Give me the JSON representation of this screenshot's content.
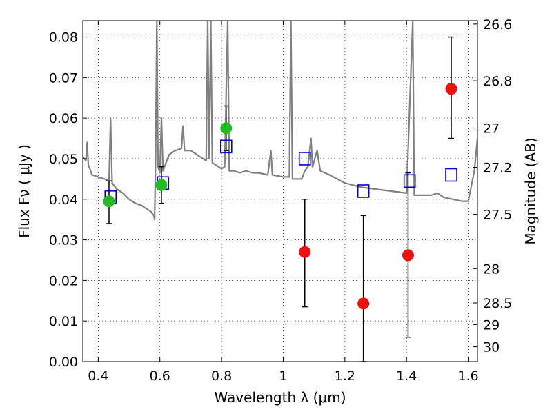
{
  "chart_data": {
    "type": "scatter",
    "xlabel": "Wavelength  λ (μm)",
    "ylabel": "Flux  Fν  ( μJy )",
    "ylabel_right": "Magnitude (AB)",
    "xlim": [
      0.35,
      1.63
    ],
    "ylim": [
      0,
      0.084
    ],
    "grid": true,
    "x_ticks": [
      0.4,
      0.6,
      0.8,
      1.0,
      1.2,
      1.4,
      1.6
    ],
    "x_tick_labels": [
      "0.4",
      "0.6",
      "0.8",
      "1",
      "1.2",
      "1.4",
      "1.6"
    ],
    "y_ticks": [
      0,
      0.01,
      0.02,
      0.03,
      0.04,
      0.05,
      0.06,
      0.07,
      0.08
    ],
    "y_tick_labels": [
      "0.00",
      "0.01",
      "0.02",
      "0.03",
      "0.04",
      "0.05",
      "0.06",
      "0.07",
      "0.08"
    ],
    "right_ticks": [
      {
        "label": "26.6",
        "mag": 26.6
      },
      {
        "label": "26.8",
        "mag": 26.8
      },
      {
        "label": "27",
        "mag": 27.0
      },
      {
        "label": "27.2",
        "mag": 27.2
      },
      {
        "label": "27.5",
        "mag": 27.5
      },
      {
        "label": "28",
        "mag": 28.0
      },
      {
        "label": "28.5",
        "mag": 28.5
      },
      {
        "label": "29",
        "mag": 29.0
      },
      {
        "label": "30",
        "mag": 30.0
      }
    ],
    "series": [
      {
        "kind": "line",
        "color": "#808080",
        "points": [
          [
            0.35,
            0.0505
          ],
          [
            0.36,
            0.0495
          ],
          [
            0.364,
            0.054
          ],
          [
            0.368,
            0.0485
          ],
          [
            0.38,
            0.046
          ],
          [
            0.4,
            0.0455
          ],
          [
            0.42,
            0.045
          ],
          [
            0.435,
            0.0445
          ],
          [
            0.44,
            0.06
          ],
          [
            0.445,
            0.044
          ],
          [
            0.46,
            0.0425
          ],
          [
            0.48,
            0.0415
          ],
          [
            0.5,
            0.04
          ],
          [
            0.52,
            0.039
          ],
          [
            0.54,
            0.0385
          ],
          [
            0.56,
            0.0375
          ],
          [
            0.57,
            0.037
          ],
          [
            0.58,
            0.036
          ],
          [
            0.583,
            0.035
          ],
          [
            0.586,
            0.05
          ],
          [
            0.59,
            0.084
          ],
          [
            0.594,
            0.048
          ],
          [
            0.6,
            0.0465
          ],
          [
            0.605,
            0.06
          ],
          [
            0.61,
            0.047
          ],
          [
            0.62,
            0.049
          ],
          [
            0.63,
            0.051
          ],
          [
            0.65,
            0.052
          ],
          [
            0.67,
            0.0525
          ],
          [
            0.675,
            0.058
          ],
          [
            0.68,
            0.052
          ],
          [
            0.7,
            0.052
          ],
          [
            0.72,
            0.051
          ],
          [
            0.74,
            0.05
          ],
          [
            0.75,
            0.0495
          ],
          [
            0.755,
            0.084
          ],
          [
            0.76,
            0.05
          ],
          [
            0.765,
            0.084
          ],
          [
            0.77,
            0.049
          ],
          [
            0.78,
            0.0485
          ],
          [
            0.79,
            0.048
          ],
          [
            0.8,
            0.0475
          ],
          [
            0.81,
            0.048
          ],
          [
            0.82,
            0.084
          ],
          [
            0.825,
            0.047
          ],
          [
            0.84,
            0.047
          ],
          [
            0.86,
            0.0465
          ],
          [
            0.88,
            0.047
          ],
          [
            0.9,
            0.0465
          ],
          [
            0.92,
            0.0465
          ],
          [
            0.95,
            0.046
          ],
          [
            0.96,
            0.052
          ],
          [
            0.965,
            0.046
          ],
          [
            1.0,
            0.0455
          ],
          [
            1.02,
            0.0455
          ],
          [
            1.025,
            0.084
          ],
          [
            1.03,
            0.045
          ],
          [
            1.06,
            0.045
          ],
          [
            1.07,
            0.047
          ],
          [
            1.08,
            0.048
          ],
          [
            1.09,
            0.055
          ],
          [
            1.095,
            0.048
          ],
          [
            1.11,
            0.052
          ],
          [
            1.12,
            0.047
          ],
          [
            1.15,
            0.046
          ],
          [
            1.2,
            0.044
          ],
          [
            1.25,
            0.043
          ],
          [
            1.3,
            0.0425
          ],
          [
            1.35,
            0.042
          ],
          [
            1.4,
            0.0415
          ],
          [
            1.42,
            0.084
          ],
          [
            1.425,
            0.041
          ],
          [
            1.45,
            0.041
          ],
          [
            1.48,
            0.041
          ],
          [
            1.5,
            0.0415
          ],
          [
            1.52,
            0.0405
          ],
          [
            1.55,
            0.04
          ],
          [
            1.58,
            0.0395
          ],
          [
            1.6,
            0.0395
          ],
          [
            1.62,
            0.047
          ],
          [
            1.63,
            0.055
          ]
        ]
      },
      {
        "kind": "open-square",
        "color": "#0000cc",
        "points": [
          [
            0.44,
            0.0405
          ],
          [
            0.61,
            0.044
          ],
          [
            0.815,
            0.053
          ],
          [
            1.07,
            0.05
          ],
          [
            1.26,
            0.042
          ],
          [
            1.41,
            0.0445
          ],
          [
            1.545,
            0.046
          ]
        ]
      },
      {
        "kind": "filled-circle",
        "color": "#22bb22",
        "points": [
          [
            0.435,
            0.0395,
            0.034,
            0.0445
          ],
          [
            0.605,
            0.0435,
            0.039,
            0.048
          ],
          [
            0.815,
            0.0575,
            0.052,
            0.063
          ]
        ]
      },
      {
        "kind": "filled-circle",
        "color": "#ee1111",
        "points": [
          [
            1.07,
            0.027,
            0.0135,
            0.04
          ],
          [
            1.26,
            0.0143,
            0.0,
            0.036
          ],
          [
            1.405,
            0.0262,
            0.006,
            0.0465
          ],
          [
            1.545,
            0.0672,
            0.055,
            0.08
          ]
        ]
      }
    ]
  }
}
